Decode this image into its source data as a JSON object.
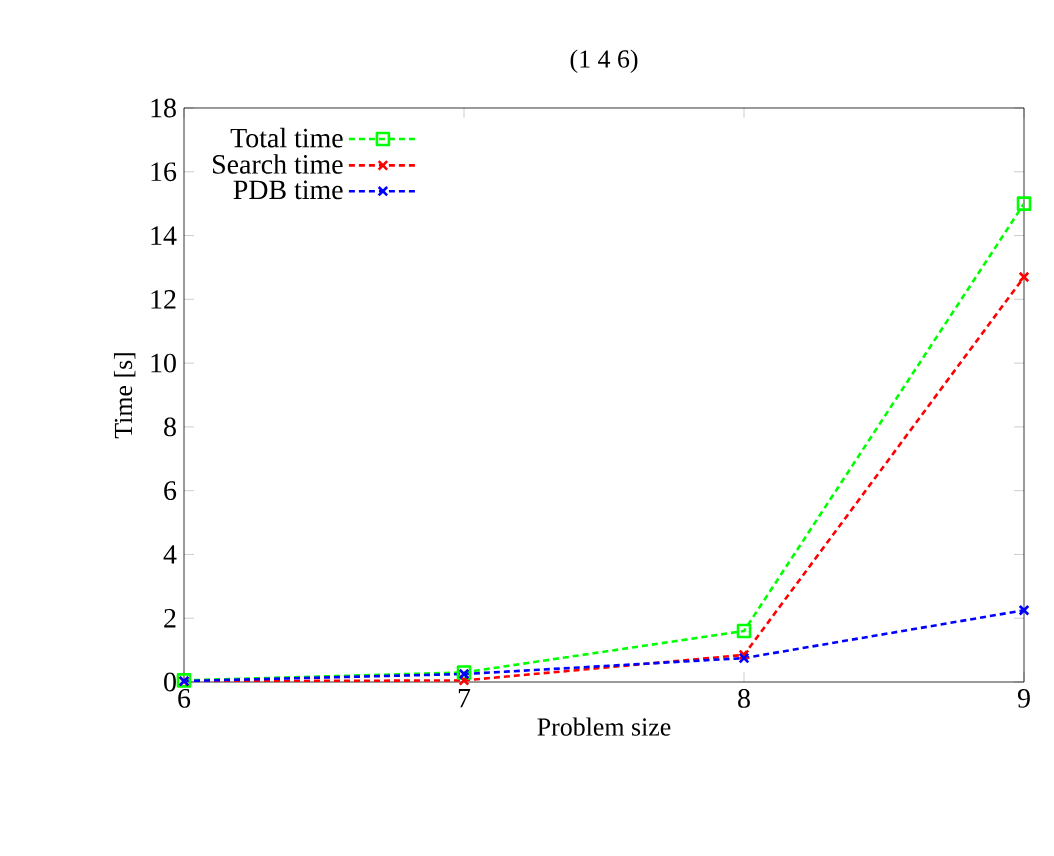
{
  "chart_data": {
    "type": "line",
    "title": "(1 4 6)",
    "xlabel": "Problem size",
    "ylabel": "Time [s]",
    "x": [
      6,
      7,
      8,
      9
    ],
    "xlim": [
      6,
      9
    ],
    "xticks": [
      6,
      7,
      8,
      9
    ],
    "ylim": [
      0,
      18
    ],
    "yticks": [
      0,
      2,
      4,
      6,
      8,
      10,
      12,
      14,
      16,
      18
    ],
    "grid": false,
    "legend": "top left",
    "line_style": "dashed",
    "series": [
      {
        "name": "Total time",
        "color": "#00ff00",
        "marker": "square",
        "values": [
          0.05,
          0.3,
          1.6,
          15.0
        ]
      },
      {
        "name": "Search time",
        "color": "#ff0000",
        "marker": "cross",
        "values": [
          0.02,
          0.05,
          0.85,
          12.7
        ]
      },
      {
        "name": "PDB time",
        "color": "#0000ff",
        "marker": "cross",
        "values": [
          0.03,
          0.25,
          0.75,
          2.25
        ]
      }
    ]
  }
}
